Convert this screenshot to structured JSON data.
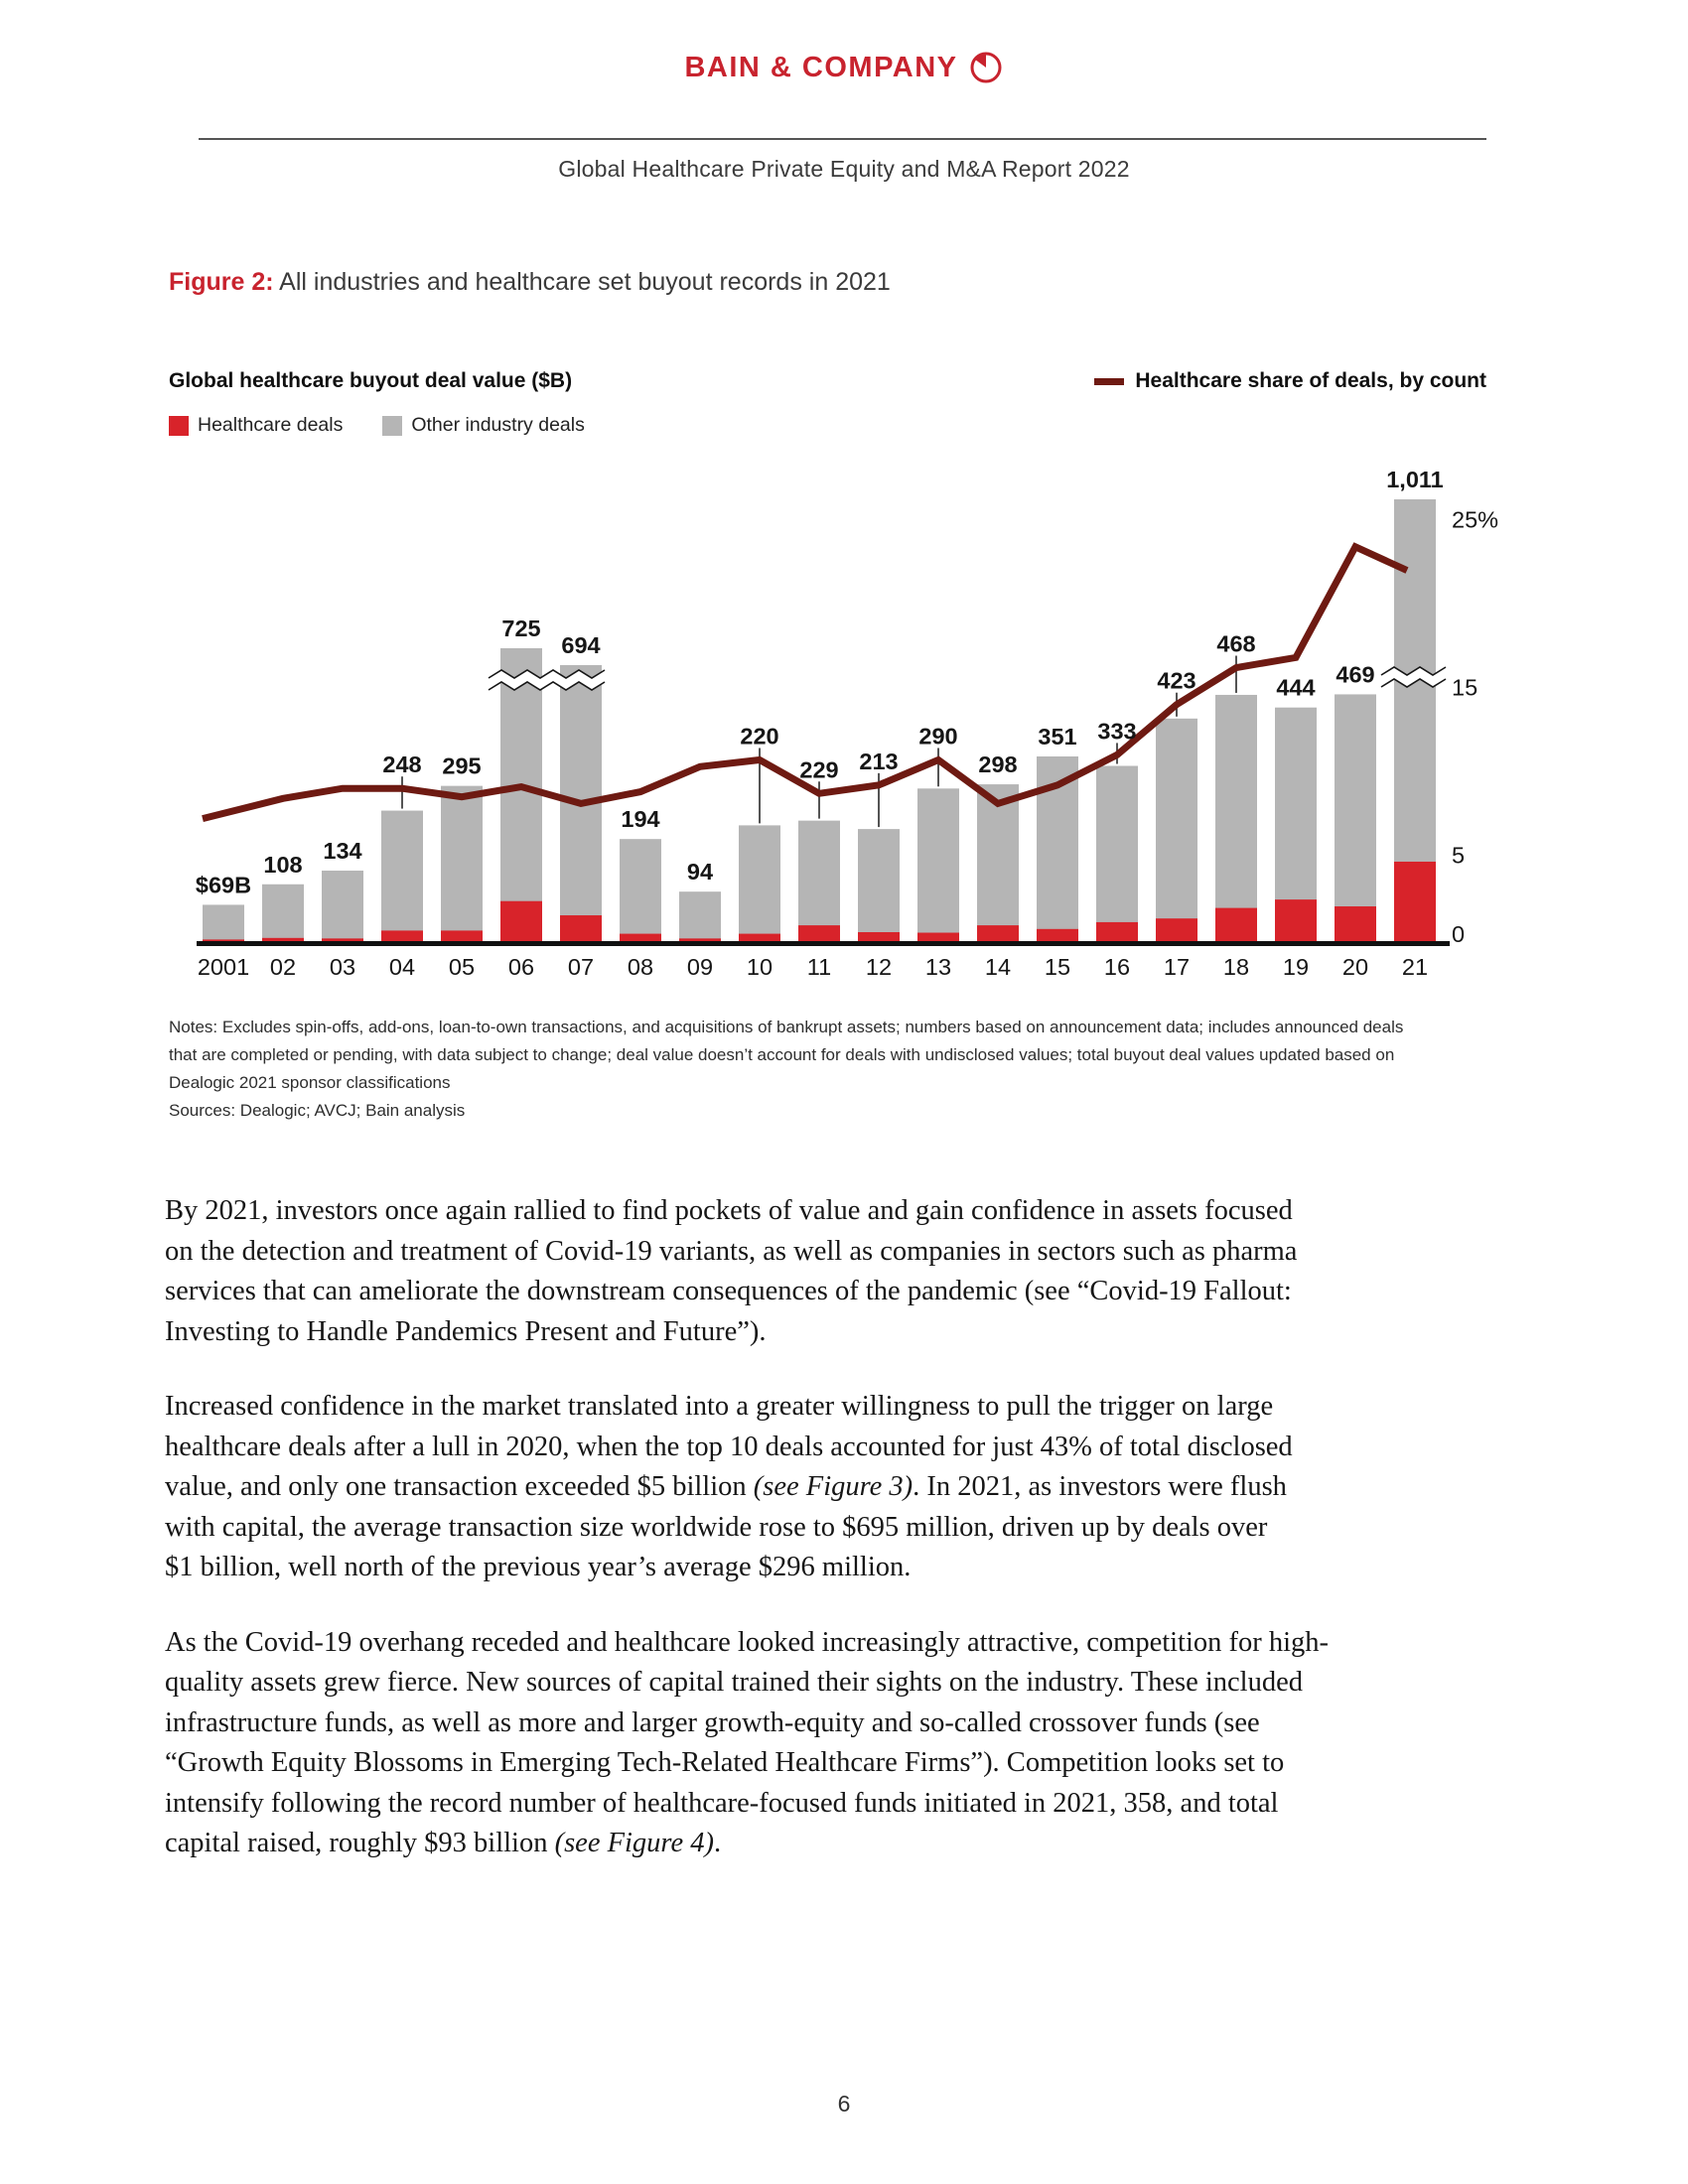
{
  "header": {
    "logo_text": "BAIN & COMPANY",
    "report_title": "Global Healthcare Private Equity and M&A Report 2022"
  },
  "figure": {
    "label": "Figure 2:",
    "caption": "All industries and healthcare set buyout records in 2021"
  },
  "colors": {
    "bain_red": "#c8232e",
    "bar_red": "#d8232a",
    "bar_gray": "#b5b5b5",
    "line_maroon": "#6e1a12"
  },
  "chart_data": {
    "type": "bar",
    "subtype": "stacked-bar-with-line",
    "title": "Global healthcare buyout deal value ($B)",
    "xlabel": "",
    "ylabel": "",
    "categories": [
      "2001",
      "02",
      "03",
      "04",
      "05",
      "06",
      "07",
      "08",
      "09",
      "10",
      "11",
      "12",
      "13",
      "14",
      "15",
      "16",
      "17",
      "18",
      "19",
      "20",
      "21"
    ],
    "totals": [
      69,
      108,
      134,
      248,
      295,
      725,
      694,
      194,
      94,
      220,
      229,
      213,
      290,
      298,
      351,
      333,
      423,
      468,
      444,
      469,
      1011
    ],
    "total_labels": [
      "$69B",
      "108",
      "134",
      "248",
      "295",
      "725",
      "694",
      "194",
      "94",
      "220",
      "229",
      "213",
      "290",
      "298",
      "351",
      "333",
      "423",
      "468",
      "444",
      "469",
      "1,011"
    ],
    "series": [
      {
        "name": "Healthcare deals",
        "color": "#d8232a",
        "values": [
          3,
          6,
          5,
          20,
          20,
          76,
          49,
          14,
          5,
          14,
          30,
          17,
          16,
          30,
          23,
          36,
          43,
          63,
          79,
          66,
          151
        ]
      },
      {
        "name": "Other industry deals",
        "color": "#b5b5b5",
        "values": [
          66,
          102,
          129,
          228,
          275,
          649,
          645,
          180,
          89,
          206,
          199,
          196,
          274,
          268,
          328,
          297,
          380,
          405,
          365,
          403,
          860
        ]
      }
    ],
    "line": {
      "name": "Healthcare share of deals, by count",
      "color": "#6e1a12",
      "unit": "%",
      "values": [
        7.3,
        8.5,
        9.1,
        9.1,
        8.6,
        9.2,
        8.2,
        8.9,
        10.4,
        10.8,
        8.8,
        9.3,
        10.8,
        8.2,
        9.3,
        11.1,
        14.1,
        16.3,
        16.9,
        23.5,
        22.1
      ]
    },
    "right_axis": {
      "labels": [
        "25%",
        "15",
        "5",
        "0"
      ],
      "values": [
        25,
        15,
        5,
        0
      ],
      "position": "right"
    },
    "truncated_years": [
      "06",
      "07",
      "21"
    ],
    "legend_position": "top-left",
    "grid": false
  },
  "notes": {
    "lines": [
      "Notes: Excludes spin-offs, add-ons, loan-to-own transactions, and acquisitions of bankrupt assets; numbers based on announcement data; includes announced deals",
      "that are completed or pending, with data subject to change; deal value doesn’t account for deals with undisclosed values; total buyout deal values updated based on",
      "Dealogic 2021 sponsor classifications",
      "Sources: Dealogic; AVCJ; Bain analysis"
    ]
  },
  "paragraphs": [
    {
      "lines": [
        "By 2021, investors once again rallied to find pockets of value and gain confidence in assets focused",
        "on the detection and treatment of Covid-19 variants, as well as companies in sectors such as pharma",
        "services that can ameliorate the downstream consequences of the pandemic (see “Covid-19 Fallout:",
        "Investing to Handle Pandemics Present and Future”)."
      ]
    },
    {
      "lines": [
        "Increased confidence in the market translated into a greater willingness to pull the trigger on large",
        "healthcare deals after a lull in 2020, when the top 10 deals accounted for just 43% of total disclosed",
        {
          "pre": "value, and only one transaction exceeded $5 billion ",
          "it": "(see Figure 3)",
          "post": ". In 2021, as investors were flush"
        },
        "with capital, the average transaction size worldwide rose to $695 million, driven up by deals over",
        "$1 billion, well north of the previous year’s average $296 million."
      ]
    },
    {
      "lines": [
        "As the Covid-19 overhang receded and healthcare looked increasingly attractive, competition for high-",
        "quality assets grew fierce. New sources of capital trained their sights on the industry. These included",
        "infrastructure funds, as well as more and larger growth-equity and so-called crossover funds (see",
        "“Growth Equity Blossoms in Emerging Tech-Related Healthcare Firms”). Competition looks set to",
        "intensify following the record number of healthcare-focused funds initiated in 2021, 358, and total",
        {
          "pre": "capital raised, roughly $93 billion ",
          "it": "(see Figure 4)",
          "post": "."
        }
      ]
    }
  ],
  "page_number": "6"
}
